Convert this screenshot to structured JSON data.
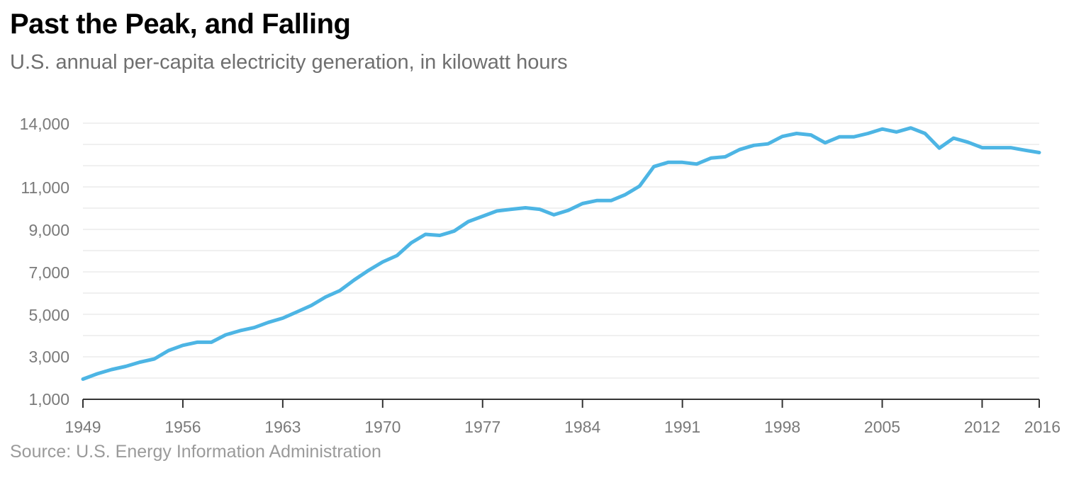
{
  "title": "Past the Peak, and Falling",
  "subtitle": "U.S. annual per-capita electricity generation, in kilowatt hours",
  "source": "Source: U.S. Energy Information Administration",
  "colors": {
    "line": "#4db5e4",
    "grid": "#e6e6e6",
    "axis": "#333333",
    "tick_text": "#7a7a7a"
  },
  "chart_data": {
    "type": "line",
    "title": "Past the Peak, and Falling",
    "xlabel": "",
    "ylabel": "",
    "xlim": [
      1949,
      2016
    ],
    "ylim": [
      1000,
      14000
    ],
    "y_ticks": [
      1000,
      3000,
      5000,
      7000,
      9000,
      11000,
      14000
    ],
    "y_tick_labels": [
      "1,000",
      "3,000",
      "5,000",
      "7,000",
      "9,000",
      "11,000",
      "14,000"
    ],
    "x_ticks": [
      1949,
      1956,
      1963,
      1970,
      1977,
      1984,
      1991,
      1998,
      2005,
      2012,
      2016
    ],
    "x_tick_labels": [
      "1949",
      "1956",
      "1963",
      "1970",
      "1977",
      "1984",
      "1991",
      "1998",
      "2005",
      "2012",
      "2016"
    ],
    "grid": true,
    "series": [
      {
        "x": [
          1949,
          1950,
          1951,
          1952,
          1953,
          1954,
          1955,
          1956,
          1957,
          1958,
          1959,
          1960,
          1961,
          1962,
          1963,
          1964,
          1965,
          1966,
          1967,
          1968,
          1969,
          1970,
          1971,
          1972,
          1973,
          1974,
          1975,
          1976,
          1977,
          1978,
          1979,
          1980,
          1981,
          1982,
          1983,
          1984,
          1985,
          1986,
          1987,
          1988,
          1989,
          1990,
          1991,
          1992,
          1993,
          1994,
          1995,
          1996,
          1997,
          1998,
          1999,
          2000,
          2001,
          2002,
          2003,
          2004,
          2005,
          2006,
          2007,
          2008,
          2009,
          2010,
          2011,
          2012,
          2013,
          2014,
          2015,
          2016
        ],
        "values": [
          1950,
          2200,
          2400,
          2550,
          2750,
          2900,
          3300,
          3550,
          3700,
          3700,
          4050,
          4250,
          4400,
          4650,
          4850,
          5150,
          5450,
          5850,
          6150,
          6650,
          7100,
          7500,
          7800,
          8400,
          8800,
          8750,
          8950,
          9400,
          9650,
          9900,
          9980,
          10050,
          9980,
          9720,
          9930,
          10250,
          10390,
          10390,
          10670,
          11070,
          11990,
          12190,
          12190,
          12110,
          12390,
          12450,
          12790,
          12990,
          13060,
          13410,
          13550,
          13480,
          13110,
          13390,
          13390,
          13550,
          13760,
          13620,
          13810,
          13550,
          12860,
          13330,
          13140,
          12880,
          12880,
          12880,
          12760,
          12650
        ]
      }
    ]
  }
}
